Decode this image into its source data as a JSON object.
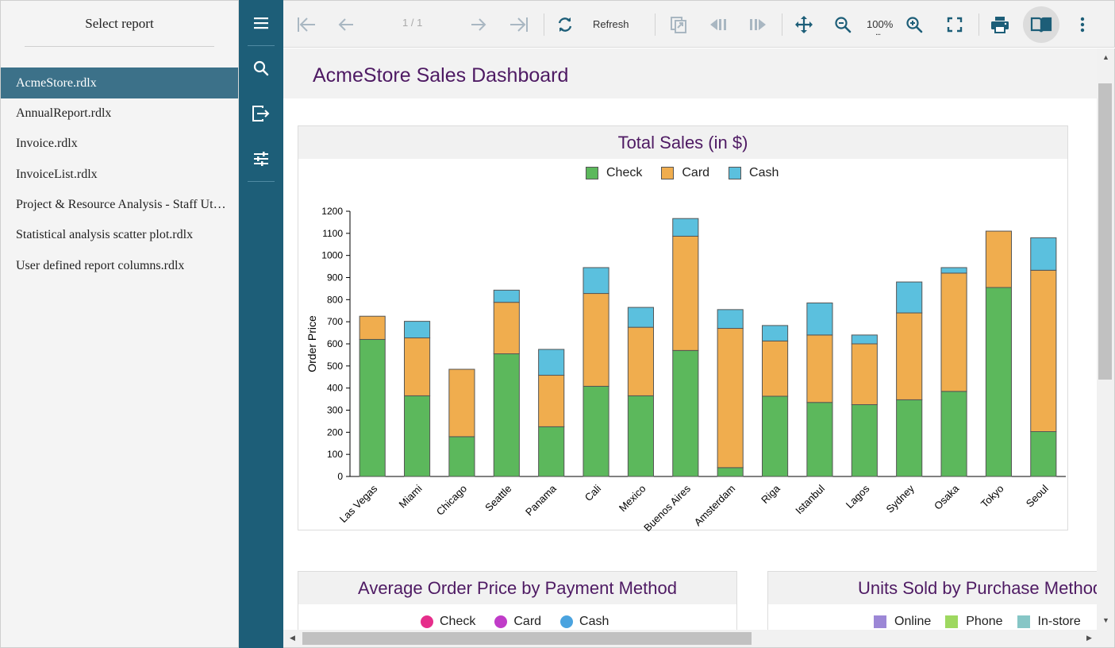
{
  "report_panel": {
    "header": "Select report",
    "items": [
      {
        "label": "AcmeStore.rdlx",
        "active": true
      },
      {
        "label": "AnnualReport.rdlx",
        "active": false
      },
      {
        "label": "Invoice.rdlx",
        "active": false
      },
      {
        "label": "InvoiceList.rdlx",
        "active": false
      },
      {
        "label": "Project & Resource Analysis - Staff Utilization.rdlx",
        "active": false
      },
      {
        "label": "Statistical analysis scatter plot.rdlx",
        "active": false
      },
      {
        "label": "User defined report columns.rdlx",
        "active": false
      }
    ]
  },
  "sidebar": {
    "buttons": [
      "menu-icon",
      "search-icon",
      "export-icon",
      "parameters-icon"
    ]
  },
  "toolbar": {
    "page_indicator": "1 / 1",
    "refresh_label": "Refresh",
    "zoom_level": "100%",
    "zoom_dropdown": "...",
    "icons": [
      "first-page-icon",
      "previous-page-icon",
      "next-page-icon",
      "last-page-icon",
      "refresh-icon",
      "parent-report-icon",
      "previous-section-icon",
      "next-section-icon",
      "pan-mode-icon",
      "zoom-out-icon",
      "zoom-in-icon",
      "fullscreen-icon",
      "print-icon",
      "galley-mode-icon",
      "more-options-icon"
    ]
  },
  "report": {
    "title": "AcmeStore Sales Dashboard",
    "avg_panel": {
      "title": "Average Order Price by Payment Method",
      "legend": [
        {
          "label": "Check",
          "color": "#e62e8b"
        },
        {
          "label": "Card",
          "color": "#c03cc8"
        },
        {
          "label": "Cash",
          "color": "#4aa3df"
        }
      ]
    },
    "units_panel": {
      "title": "Units Sold by Purchase Method",
      "legend": [
        {
          "label": "Online",
          "color": "#9c87d6"
        },
        {
          "label": "Phone",
          "color": "#9ed860"
        },
        {
          "label": "In-store",
          "color": "#86c6c6"
        }
      ]
    }
  },
  "chart_data": {
    "type": "bar",
    "stacked": true,
    "title": "Total Sales (in $)",
    "xlabel": "",
    "ylabel": "Order Price",
    "ylim": [
      0,
      1200
    ],
    "yticks": [
      0,
      100,
      200,
      300,
      400,
      500,
      600,
      700,
      800,
      900,
      1000,
      1100,
      1200
    ],
    "legend_position": "top",
    "categories": [
      "Las Vegas",
      "Miami",
      "Chicago",
      "Seattle",
      "Panama",
      "Cali",
      "Mexico",
      "Buenos Aires",
      "Amsterdam",
      "Riga",
      "Istanbul",
      "Lagos",
      "Sydney",
      "Osaka",
      "Tokyo",
      "Seoul"
    ],
    "series": [
      {
        "name": "Check",
        "color": "#5cb85c",
        "values": [
          620,
          365,
          180,
          555,
          225,
          408,
          365,
          570,
          40,
          363,
          335,
          325,
          347,
          385,
          855,
          203
        ]
      },
      {
        "name": "Card",
        "color": "#f0ad4e",
        "values": [
          105,
          262,
          305,
          233,
          233,
          420,
          310,
          517,
          630,
          250,
          305,
          275,
          393,
          535,
          255,
          730
        ]
      },
      {
        "name": "Cash",
        "color": "#5bc0de",
        "values": [
          0,
          75,
          0,
          55,
          117,
          117,
          90,
          80,
          85,
          70,
          145,
          40,
          140,
          25,
          0,
          147
        ]
      }
    ]
  }
}
